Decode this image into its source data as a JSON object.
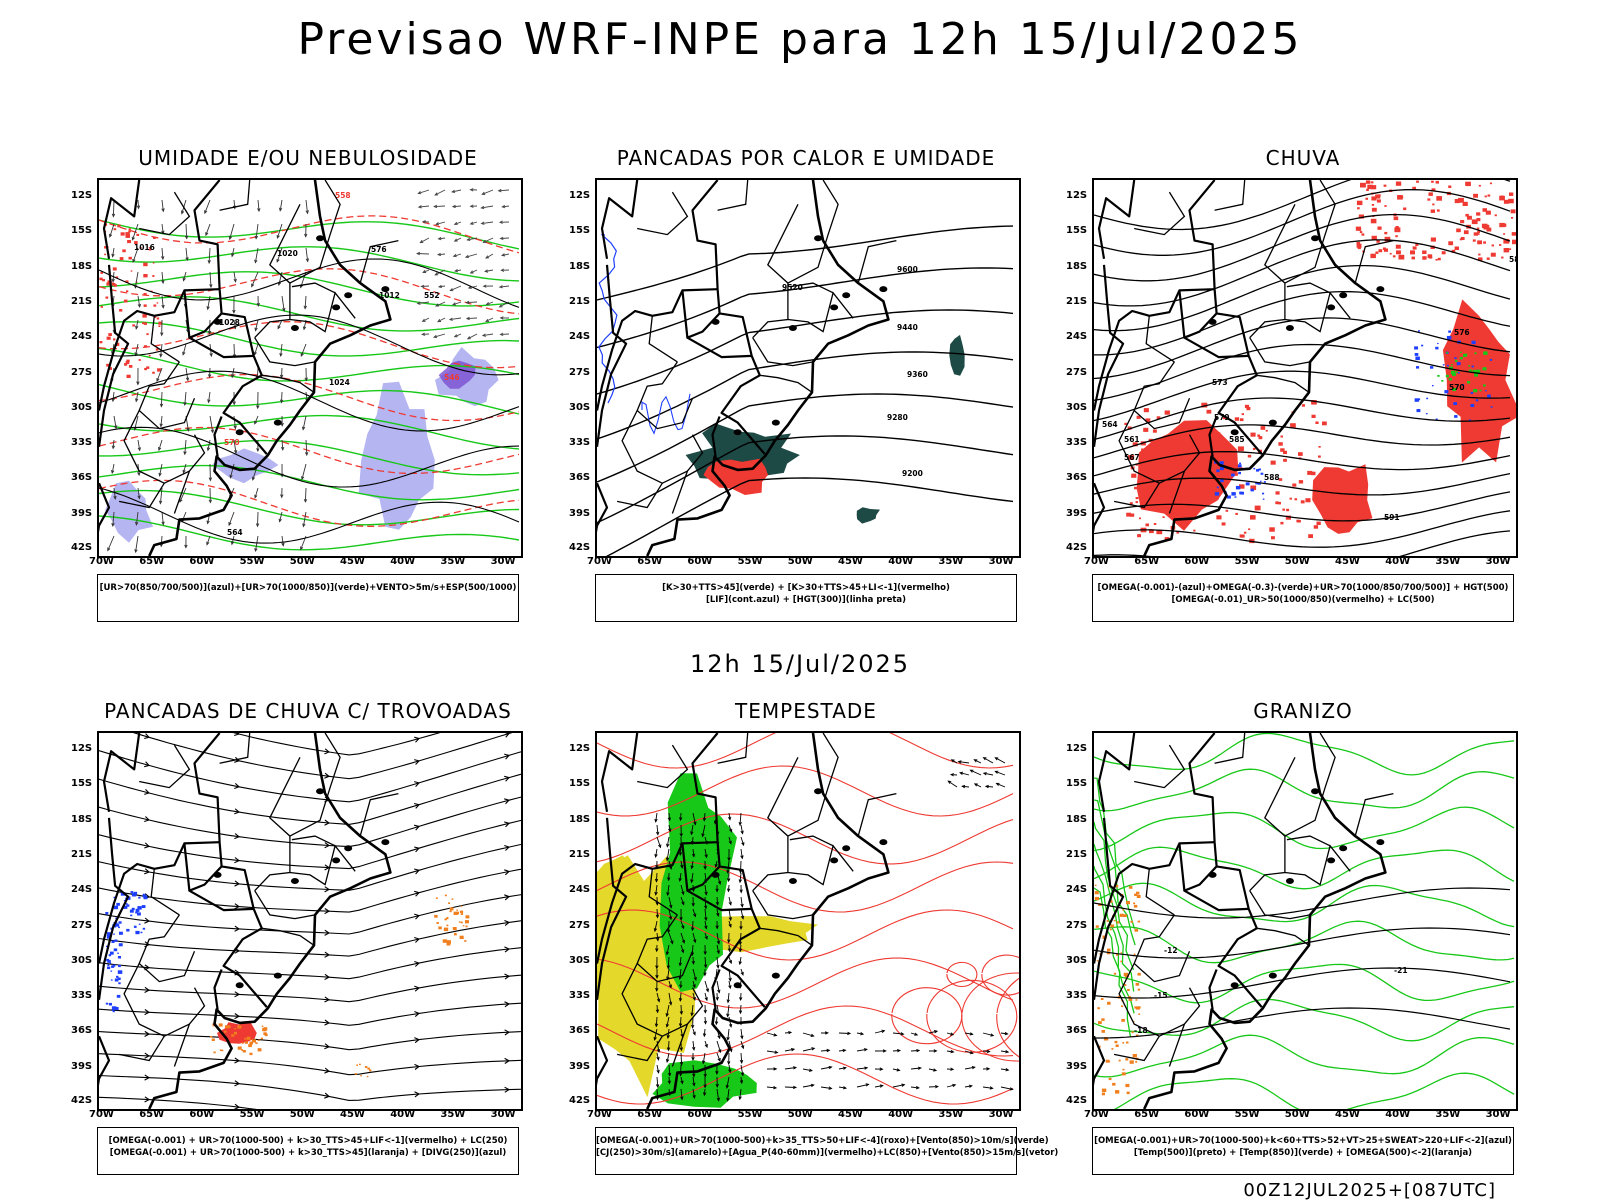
{
  "header": {
    "title": "Previsao WRF-INPE  para 12h 15/Jul/2025",
    "subtitle": "12h 15/Jul/2025",
    "footer": "00Z12JUL2025+[087UTC]"
  },
  "axes": {
    "lat_labels": [
      "12S",
      "15S",
      "18S",
      "21S",
      "24S",
      "27S",
      "30S",
      "33S",
      "36S",
      "39S",
      "42S"
    ],
    "lon_labels": [
      "70W",
      "65W",
      "60W",
      "55W",
      "50W",
      "45W",
      "40W",
      "35W",
      "30W"
    ]
  },
  "colors": {
    "blue": "#1f3fff",
    "green": "#18c818",
    "red": "#ee3a32",
    "orange": "#f07f1e",
    "yellow": "#e4d82a",
    "dark_teal": "#1e4a46",
    "lavender": "#a8a8f0",
    "purple": "#7b4fd0"
  },
  "panels": [
    {
      "id": "umidade",
      "title": "UMIDADE E/OU NEBULOSIDADE",
      "legend": [
        "[UR>70(850/700/500)](azul)+[UR>70(1000/850)](verde)+VENTO>5m/s+ESP(500/1000)"
      ],
      "contour_labels": [
        "1016",
        "1020",
        "1024",
        "1028",
        "1012",
        "570",
        "564",
        "558",
        "552",
        "546",
        "576"
      ]
    },
    {
      "id": "pancadas-calor",
      "title": "PANCADAS POR CALOR E UMIDADE",
      "legend": [
        "[K>30+TTS>45](verde) + [K>30+TTS>45+LI<-1](vermelho)",
        "[LIF](cont.azul) + [HGT(300)](linha preta)"
      ],
      "contour_labels": [
        "9600",
        "9520",
        "9440",
        "9360",
        "9280",
        "9200"
      ]
    },
    {
      "id": "chuva",
      "title": "CHUVA",
      "legend": [
        "[OMEGA(-0.001)-(azul)+OMEGA(-0.3)-(verde)+UR>70(1000/850/700/500)] + HGT(500)",
        "[OMEGA(-0.01)_UR>50(1000/850)(vermelho) + LC(500)"
      ],
      "contour_labels": [
        "582",
        "576",
        "570",
        "564",
        "561",
        "567",
        "573",
        "579",
        "585",
        "588",
        "591"
      ]
    },
    {
      "id": "pancadas-trovoadas",
      "title": "PANCADAS DE CHUVA C/ TROVOADAS",
      "legend": [
        "[OMEGA(-0.001) + UR>70(1000-500) + k>30_TTS>45+LIF<-1](vermelho) + LC(250)",
        "[OMEGA(-0.001) + UR>70(1000-500) + k>30_TTS>45](laranja) + [DIVG(250)](azul)"
      ],
      "contour_labels": []
    },
    {
      "id": "tempestade",
      "title": "TEMPESTADE",
      "legend": [
        "[OMEGA(-0.001)+UR>70(1000-500)+k>35_TTS>50+LIF<-4](roxo)+[Vento(850)>10m/s](verde)",
        "[CJ(250)>30m/s](amarelo)+[Agua_P(40-60mm)](vermelho)+LC(850)+[Vento(850)>15m/s](vetor)"
      ],
      "contour_labels": []
    },
    {
      "id": "granizo",
      "title": "GRANIZO",
      "legend": [
        "[OMEGA(-0.001)+UR>70(1000-500)+k<60+TTS>52+VT>25+SWEAT>220+LIF<-2](azul)",
        "[Temp(500)](preto) + [Temp(850)](verde) + [OMEGA(500)<-2](laranja)"
      ],
      "contour_labels": [
        "-12",
        "-15",
        "-18",
        "-21"
      ]
    }
  ]
}
